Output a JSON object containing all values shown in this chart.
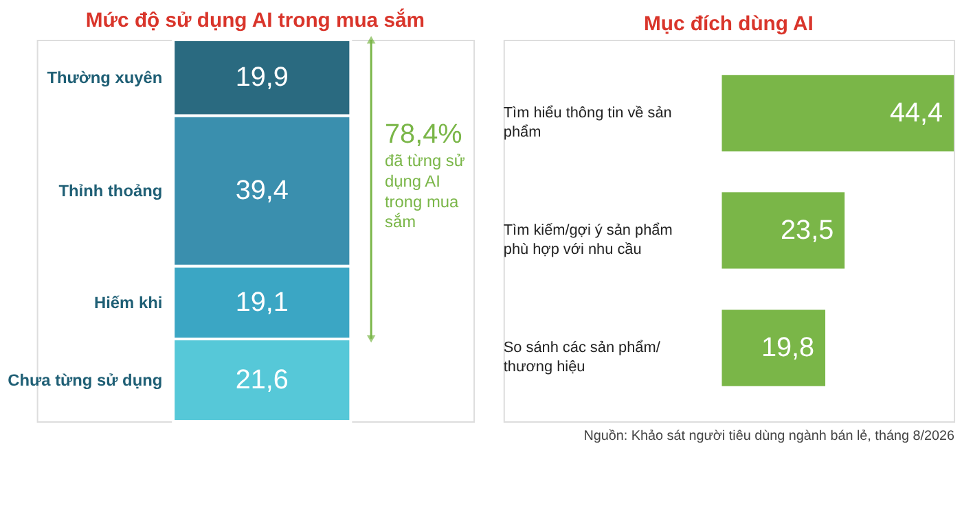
{
  "chart_data": [
    {
      "type": "bar",
      "title": "Mức độ sử dụng AI trong mua sắm",
      "stacked": true,
      "categories": [
        null
      ],
      "series": [
        {
          "name": "Chưa từng sử dụng",
          "color": "#56c8d8",
          "values": [
            21.6
          ],
          "value_labels": [
            "21,6"
          ]
        },
        {
          "name": "Hiếm khi",
          "color": "#3ba6c4",
          "values": [
            19.1
          ],
          "value_labels": [
            "19,1"
          ]
        },
        {
          "name": "Thỉnh thoảng",
          "color": "#3a8fae",
          "values": [
            39.4
          ],
          "value_labels": [
            "39,4"
          ]
        },
        {
          "name": "Thường xuyên",
          "color": "#2a6a80",
          "values": [
            19.9
          ],
          "value_labels": [
            "19,9"
          ]
        }
      ],
      "annotations": [
        "78,4%",
        "đã từng sử dụng AI trong mua sắm"
      ]
    },
    {
      "type": "bar",
      "title": "Mục đích dùng AI",
      "orientation": "horizontal",
      "color": "#7ab648",
      "categories": [
        "Tìm hiểu thông tin về sản phẩm",
        "Tìm kiếm/gợi ý sản phẩm phù hợp với nhu cầu",
        "So sánh các sản phẩm/ thương hiệu"
      ],
      "values": [
        44.4,
        23.5,
        19.8
      ],
      "value_labels": [
        "44,4",
        "23,5",
        "19,8"
      ],
      "annotations": [
        "Nguồn: Khảo sát người tiêu dùng ngành bán lẻ, tháng 8/2026"
      ]
    }
  ]
}
